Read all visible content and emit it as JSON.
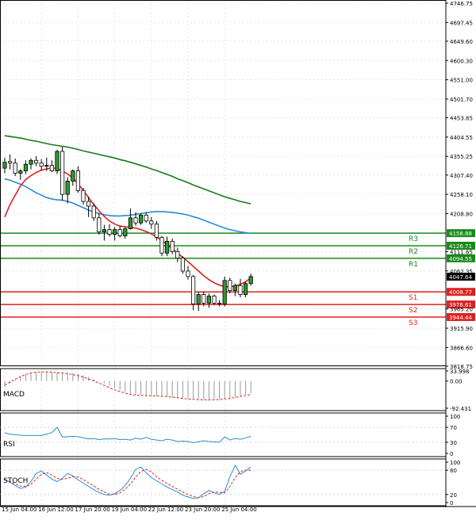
{
  "chart_data": {
    "type": "candlestick",
    "main": {
      "y_ticks": [
        "4746.75",
        "4697.45",
        "4649.60",
        "4600.30",
        "4551.00",
        "4501.70",
        "4453.85",
        "4404.55",
        "4355.25",
        "4307.40",
        "4258.10",
        "4208.80",
        "4111.65",
        "4062.35",
        "3965.20",
        "3915.90",
        "3866.60",
        "3818.75"
      ],
      "x_ticks": [
        "15 Jun 04:00",
        "16 Jun 12:00",
        "17 Jun 20:00",
        "19 Jun 04:00",
        "22 Jun 12:00",
        "23 Jun 20:00",
        "25 Jun 04:00"
      ],
      "levels": [
        {
          "name": "R3",
          "value": 4158.88,
          "value_label": "4158.88",
          "color": "#1a8a1a"
        },
        {
          "name": "R2",
          "value": 4126.71,
          "value_label": "4126.71",
          "color": "#1a8a1a"
        },
        {
          "name": "R1",
          "value": 4094.55,
          "value_label": "4094.55",
          "color": "#1a8a1a"
        },
        {
          "name": "S1",
          "value": 4008.77,
          "value_label": "4008.77",
          "color": "#e02020"
        },
        {
          "name": "S2",
          "value": 3976.61,
          "value_label": "3976.61",
          "color": "#e02020"
        },
        {
          "name": "S3",
          "value": 3944.44,
          "value_label": "3944.44",
          "color": "#e02020"
        }
      ],
      "current_price": "4047.64",
      "candles": [
        {
          "o": 4325,
          "h": 4352,
          "l": 4312,
          "c": 4340
        },
        {
          "o": 4342,
          "h": 4360,
          "l": 4322,
          "c": 4338
        },
        {
          "o": 4338,
          "h": 4350,
          "l": 4305,
          "c": 4312
        },
        {
          "o": 4312,
          "h": 4322,
          "l": 4295,
          "c": 4318
        },
        {
          "o": 4318,
          "h": 4345,
          "l": 4310,
          "c": 4335
        },
        {
          "o": 4335,
          "h": 4350,
          "l": 4322,
          "c": 4345
        },
        {
          "o": 4345,
          "h": 4356,
          "l": 4330,
          "c": 4338
        },
        {
          "o": 4338,
          "h": 4348,
          "l": 4320,
          "c": 4330
        },
        {
          "o": 4330,
          "h": 4352,
          "l": 4318,
          "c": 4332
        },
        {
          "o": 4332,
          "h": 4345,
          "l": 4315,
          "c": 4318
        },
        {
          "o": 4318,
          "h": 4372,
          "l": 4310,
          "c": 4368
        },
        {
          "o": 4368,
          "h": 4380,
          "l": 4242,
          "c": 4258
        },
        {
          "o": 4258,
          "h": 4302,
          "l": 4235,
          "c": 4292
        },
        {
          "o": 4292,
          "h": 4322,
          "l": 4280,
          "c": 4318
        },
        {
          "o": 4318,
          "h": 4330,
          "l": 4262,
          "c": 4268
        },
        {
          "o": 4268,
          "h": 4275,
          "l": 4232,
          "c": 4240
        },
        {
          "o": 4240,
          "h": 4252,
          "l": 4200,
          "c": 4228
        },
        {
          "o": 4228,
          "h": 4235,
          "l": 4190,
          "c": 4198
        },
        {
          "o": 4198,
          "h": 4210,
          "l": 4155,
          "c": 4162
        },
        {
          "o": 4162,
          "h": 4180,
          "l": 4140,
          "c": 4168
        },
        {
          "o": 4168,
          "h": 4182,
          "l": 4150,
          "c": 4156
        },
        {
          "o": 4156,
          "h": 4175,
          "l": 4140,
          "c": 4168
        },
        {
          "o": 4168,
          "h": 4178,
          "l": 4148,
          "c": 4152
        },
        {
          "o": 4152,
          "h": 4175,
          "l": 4145,
          "c": 4170
        },
        {
          "o": 4170,
          "h": 4222,
          "l": 4168,
          "c": 4198
        },
        {
          "o": 4198,
          "h": 4212,
          "l": 4178,
          "c": 4185
        },
        {
          "o": 4185,
          "h": 4210,
          "l": 4180,
          "c": 4205
        },
        {
          "o": 4205,
          "h": 4212,
          "l": 4185,
          "c": 4190
        },
        {
          "o": 4190,
          "h": 4200,
          "l": 4170,
          "c": 4182
        },
        {
          "o": 4182,
          "h": 4190,
          "l": 4140,
          "c": 4148
        },
        {
          "o": 4148,
          "h": 4152,
          "l": 4100,
          "c": 4108
        },
        {
          "o": 4108,
          "h": 4150,
          "l": 4100,
          "c": 4138
        },
        {
          "o": 4138,
          "h": 4145,
          "l": 4105,
          "c": 4112
        },
        {
          "o": 4112,
          "h": 4122,
          "l": 4085,
          "c": 4095
        },
        {
          "o": 4095,
          "h": 4100,
          "l": 4055,
          "c": 4062
        },
        {
          "o": 4062,
          "h": 4075,
          "l": 4040,
          "c": 4048
        },
        {
          "o": 4048,
          "h": 4052,
          "l": 3962,
          "c": 3978
        },
        {
          "o": 3978,
          "h": 4008,
          "l": 3960,
          "c": 4002
        },
        {
          "o": 4002,
          "h": 4010,
          "l": 3972,
          "c": 3980
        },
        {
          "o": 3980,
          "h": 4005,
          "l": 3968,
          "c": 3998
        },
        {
          "o": 3998,
          "h": 4002,
          "l": 3975,
          "c": 3980
        },
        {
          "o": 3980,
          "h": 3988,
          "l": 3972,
          "c": 3978
        },
        {
          "o": 3978,
          "h": 4048,
          "l": 3972,
          "c": 4038
        },
        {
          "o": 4038,
          "h": 4045,
          "l": 4005,
          "c": 4012
        },
        {
          "o": 4012,
          "h": 4030,
          "l": 3998,
          "c": 4025
        },
        {
          "o": 4025,
          "h": 4042,
          "l": 3995,
          "c": 4002
        },
        {
          "o": 4002,
          "h": 4035,
          "l": 3995,
          "c": 4030
        },
        {
          "o": 4030,
          "h": 4055,
          "l": 4025,
          "c": 4048
        }
      ],
      "ma_fast": [
        4200,
        4232,
        4256,
        4280,
        4296,
        4306,
        4314,
        4320,
        4323,
        4326,
        4324,
        4318,
        4310,
        4300,
        4285,
        4268,
        4250,
        4232,
        4216,
        4202,
        4190,
        4182,
        4177,
        4175,
        4174,
        4172,
        4168,
        4163,
        4157,
        4149,
        4140,
        4130,
        4119,
        4108,
        4097,
        4086,
        4074,
        4062,
        4050,
        4040,
        4032,
        4026,
        4022,
        4022,
        4024,
        4028,
        4035,
        4044
      ],
      "ma_mid": [
        4298,
        4294,
        4289,
        4284,
        4278,
        4270,
        4262,
        4256,
        4250,
        4246,
        4244,
        4243,
        4240,
        4236,
        4230,
        4224,
        4218,
        4213,
        4209,
        4206,
        4204,
        4203,
        4203,
        4204,
        4205,
        4207,
        4209,
        4211,
        4213,
        4214,
        4214,
        4213,
        4212,
        4210,
        4208,
        4205,
        4201,
        4197,
        4192,
        4187,
        4182,
        4177,
        4172,
        4168,
        4165,
        4162,
        4160,
        4158
      ],
      "ma_slow": [
        4408,
        4406,
        4404,
        4402,
        4399,
        4396,
        4394,
        4391,
        4388,
        4385,
        4383,
        4381,
        4379,
        4376,
        4373,
        4369,
        4366,
        4363,
        4360,
        4357,
        4354,
        4351,
        4347,
        4344,
        4340,
        4336,
        4332,
        4328,
        4323,
        4319,
        4314,
        4309,
        4304,
        4298,
        4293,
        4288,
        4282,
        4277,
        4272,
        4267,
        4262,
        4257,
        4252,
        4248,
        4244,
        4240,
        4237,
        4234
      ]
    },
    "macd": {
      "label": "MACD",
      "y_ticks": [
        "33.998",
        "0.00",
        "-92.431"
      ],
      "histogram": [
        -20,
        -8,
        4,
        14,
        22,
        27,
        30,
        31,
        31,
        31,
        30,
        29,
        28,
        27,
        24,
        20,
        14,
        7,
        0,
        -8,
        -16,
        -24,
        -31,
        -37,
        -42,
        -46,
        -48,
        -49,
        -50,
        -50,
        -51,
        -52,
        -54,
        -56,
        -58,
        -59,
        -60,
        -61,
        -62,
        -62,
        -62,
        -61,
        -60,
        -57,
        -54,
        -50,
        -46,
        -42
      ],
      "signal": [
        -14,
        -4,
        6,
        15,
        22,
        27,
        30,
        31,
        31,
        30,
        28,
        27,
        25,
        22,
        18,
        13,
        7,
        0,
        -7,
        -15,
        -23,
        -30,
        -36,
        -41,
        -45,
        -48,
        -49,
        -50,
        -50,
        -51,
        -52,
        -53,
        -55,
        -57,
        -59,
        -61,
        -62,
        -63,
        -64,
        -64,
        -64,
        -63,
        -61,
        -59,
        -56,
        -52,
        -49,
        -46
      ]
    },
    "rsi": {
      "label": "RSI",
      "y_ticks": [
        "100",
        "70",
        "30",
        "0"
      ],
      "values": [
        55,
        52,
        50,
        49,
        48,
        48,
        48,
        48,
        52,
        56,
        70,
        44,
        45,
        46,
        45,
        42,
        39,
        40,
        37,
        39,
        39,
        40,
        37,
        38,
        36,
        41,
        38,
        43,
        38,
        36,
        34,
        38,
        36,
        32,
        33,
        32,
        29,
        31,
        34,
        32,
        31,
        30,
        44,
        36,
        40,
        38,
        41,
        46
      ]
    },
    "stoch": {
      "label": "STOCH",
      "y_ticks": [
        "100",
        "80",
        "20",
        "0"
      ],
      "k": [
        58,
        50,
        42,
        35,
        38,
        52,
        72,
        78,
        68,
        58,
        52,
        60,
        72,
        66,
        56,
        48,
        40,
        32,
        25,
        20,
        18,
        22,
        30,
        42,
        60,
        82,
        88,
        74,
        62,
        54,
        46,
        38,
        32,
        26,
        18,
        14,
        10,
        12,
        22,
        30,
        24,
        20,
        28,
        64,
        92,
        70,
        78,
        88
      ],
      "d": [
        56,
        52,
        46,
        41,
        40,
        45,
        58,
        70,
        74,
        68,
        60,
        57,
        60,
        64,
        63,
        57,
        49,
        41,
        33,
        26,
        21,
        20,
        24,
        33,
        46,
        63,
        77,
        82,
        76,
        64,
        55,
        47,
        40,
        33,
        26,
        20,
        15,
        12,
        15,
        22,
        26,
        25,
        24,
        40,
        62,
        76,
        80,
        80
      ]
    }
  }
}
